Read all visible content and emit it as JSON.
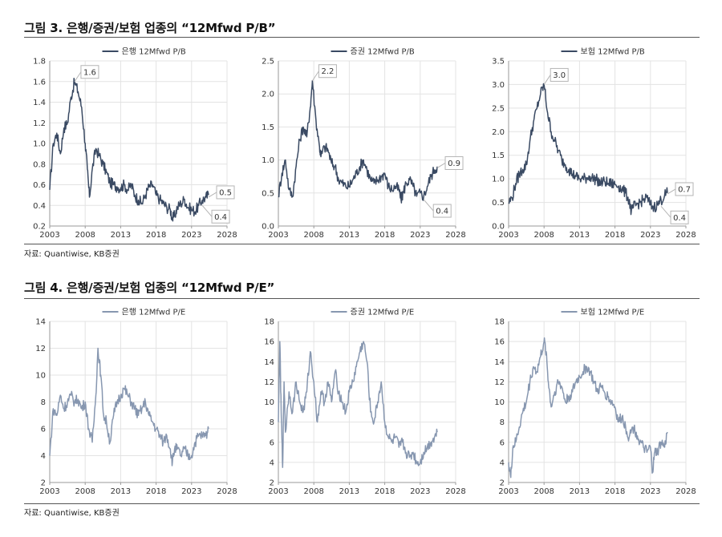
{
  "figures": [
    {
      "title": "그림 3. 은행/증권/보험 업종의 “12Mfwd P/B”",
      "source": "자료: Quantiwise, KB증권"
    },
    {
      "title": "그림 4. 은행/증권/보험 업종의 “12Mfwd P/E”",
      "source": "자료: Quantiwise, KB증권"
    }
  ],
  "colors": {
    "pb": "#3a4a63",
    "pe": "#8797b0",
    "grid": "#e3e3e3",
    "axis": "#9a9a9a",
    "callout_border": "#b5b5b5"
  },
  "chart_data": [
    {
      "type": "line",
      "series": [
        {
          "name": "은행 12Mfwd P/B",
          "x": [
            2003.0,
            2003.5,
            2004.0,
            2004.5,
            2005.0,
            2005.5,
            2006.0,
            2006.5,
            2007.0,
            2007.5,
            2008.0,
            2008.3,
            2008.6,
            2009.0,
            2009.5,
            2010.0,
            2010.5,
            2011.0,
            2011.5,
            2012.0,
            2012.5,
            2013.0,
            2013.5,
            2014.0,
            2014.5,
            2015.0,
            2015.5,
            2016.0,
            2016.5,
            2017.0,
            2017.5,
            2018.0,
            2018.5,
            2019.0,
            2019.5,
            2020.0,
            2020.3,
            2020.6,
            2021.0,
            2021.5,
            2022.0,
            2022.5,
            2023.0,
            2023.5,
            2024.0,
            2024.5,
            2025.0,
            2025.4
          ],
          "values": [
            0.55,
            1.0,
            1.1,
            0.9,
            1.15,
            1.2,
            1.45,
            1.6,
            1.5,
            1.35,
            1.0,
            0.75,
            0.48,
            0.75,
            0.95,
            0.88,
            0.8,
            0.72,
            0.62,
            0.6,
            0.58,
            0.57,
            0.6,
            0.55,
            0.6,
            0.5,
            0.45,
            0.42,
            0.5,
            0.58,
            0.6,
            0.5,
            0.46,
            0.42,
            0.38,
            0.36,
            0.27,
            0.3,
            0.38,
            0.42,
            0.46,
            0.38,
            0.36,
            0.34,
            0.4,
            0.45,
            0.48,
            0.5
          ]
        }
      ],
      "xlim": [
        2003,
        2028
      ],
      "ylim": [
        0.2,
        1.8
      ],
      "xticks": [
        "2003",
        "2008",
        "2013",
        "2018",
        "2023",
        "2028"
      ],
      "yticks": [
        "0.2",
        "0.4",
        "0.6",
        "0.8",
        "1.0",
        "1.2",
        "1.4",
        "1.6",
        "1.8"
      ],
      "legend": "top-center",
      "grid": true,
      "annotations": [
        {
          "text": "1.6",
          "x": 2006.5,
          "y": 1.6
        },
        {
          "text": "0.5",
          "x": 2025.4,
          "y": 0.48
        },
        {
          "text": "0.4",
          "x": 2024.5,
          "y": 0.4
        }
      ]
    },
    {
      "type": "line",
      "series": [
        {
          "name": "증권 12Mfwd P/B",
          "x": [
            2003.0,
            2003.5,
            2004.0,
            2004.5,
            2005.0,
            2005.5,
            2006.0,
            2006.5,
            2007.0,
            2007.5,
            2007.8,
            2008.3,
            2008.8,
            2009.0,
            2009.5,
            2010.0,
            2010.5,
            2011.0,
            2011.5,
            2012.0,
            2012.5,
            2013.0,
            2013.5,
            2014.0,
            2014.5,
            2015.0,
            2015.5,
            2016.0,
            2016.5,
            2017.0,
            2017.5,
            2018.0,
            2018.5,
            2019.0,
            2019.5,
            2020.0,
            2020.3,
            2020.6,
            2021.0,
            2021.5,
            2022.0,
            2022.5,
            2023.0,
            2023.5,
            2024.0,
            2024.5,
            2025.0,
            2025.4
          ],
          "values": [
            0.45,
            0.8,
            1.0,
            0.55,
            0.45,
            0.9,
            1.3,
            1.5,
            1.35,
            1.8,
            2.2,
            1.6,
            1.2,
            1.05,
            1.2,
            1.15,
            0.95,
            0.9,
            0.7,
            0.65,
            0.6,
            0.6,
            0.7,
            0.8,
            0.9,
            1.0,
            0.85,
            0.7,
            0.65,
            0.7,
            0.75,
            0.8,
            0.6,
            0.55,
            0.6,
            0.55,
            0.4,
            0.5,
            0.65,
            0.7,
            0.6,
            0.45,
            0.5,
            0.45,
            0.6,
            0.75,
            0.85,
            0.9
          ]
        }
      ],
      "xlim": [
        2003,
        2028
      ],
      "ylim": [
        0.0,
        2.5
      ],
      "xticks": [
        "2003",
        "2008",
        "2013",
        "2018",
        "2023",
        "2028"
      ],
      "yticks": [
        "0.0",
        "0.5",
        "1.0",
        "1.5",
        "2.0",
        "2.5"
      ],
      "legend": "top-center",
      "grid": true,
      "annotations": [
        {
          "text": "2.2",
          "x": 2007.8,
          "y": 2.2
        },
        {
          "text": "0.9",
          "x": 2025.4,
          "y": 0.88
        },
        {
          "text": "0.4",
          "x": 2023.5,
          "y": 0.4
        }
      ]
    },
    {
      "type": "line",
      "series": [
        {
          "name": "보험 12Mfwd P/B",
          "x": [
            2003.0,
            2003.5,
            2004.0,
            2004.5,
            2005.0,
            2005.5,
            2006.0,
            2006.5,
            2007.0,
            2007.5,
            2008.0,
            2008.5,
            2009.0,
            2009.5,
            2010.0,
            2010.5,
            2011.0,
            2011.5,
            2012.0,
            2012.5,
            2013.0,
            2013.5,
            2014.0,
            2014.5,
            2015.0,
            2015.5,
            2016.0,
            2016.5,
            2017.0,
            2017.5,
            2018.0,
            2018.5,
            2019.0,
            2019.5,
            2020.0,
            2020.3,
            2020.6,
            2021.0,
            2021.5,
            2022.0,
            2022.5,
            2023.0,
            2023.5,
            2024.0,
            2024.5,
            2025.0,
            2025.4
          ],
          "values": [
            0.5,
            0.6,
            0.9,
            1.1,
            1.2,
            1.3,
            1.8,
            2.2,
            2.5,
            2.8,
            3.0,
            2.4,
            2.0,
            1.8,
            1.6,
            1.4,
            1.3,
            1.2,
            1.1,
            1.05,
            1.0,
            1.0,
            1.02,
            1.05,
            1.0,
            0.98,
            0.9,
            0.95,
            0.9,
            0.9,
            0.88,
            0.85,
            0.78,
            0.7,
            0.55,
            0.3,
            0.4,
            0.45,
            0.5,
            0.55,
            0.6,
            0.45,
            0.4,
            0.45,
            0.55,
            0.65,
            0.7
          ]
        }
      ],
      "xlim": [
        2003,
        2028
      ],
      "ylim": [
        0.0,
        3.5
      ],
      "xticks": [
        "2003",
        "2008",
        "2013",
        "2018",
        "2023",
        "2028"
      ],
      "yticks": [
        "0.0",
        "0.5",
        "1.0",
        "1.5",
        "2.0",
        "2.5",
        "3.0",
        "3.5"
      ],
      "legend": "top-center",
      "grid": true,
      "annotations": [
        {
          "text": "3.0",
          "x": 2008.0,
          "y": 3.0
        },
        {
          "text": "0.7",
          "x": 2025.4,
          "y": 0.68
        },
        {
          "text": "0.4",
          "x": 2024.5,
          "y": 0.42
        }
      ]
    },
    {
      "type": "line",
      "series": [
        {
          "name": "은행 12Mfwd P/E",
          "x": [
            2003.0,
            2003.5,
            2004.0,
            2004.5,
            2005.0,
            2005.5,
            2006.0,
            2006.5,
            2007.0,
            2007.5,
            2008.0,
            2008.5,
            2009.0,
            2009.5,
            2009.8,
            2010.2,
            2010.6,
            2011.0,
            2011.5,
            2012.0,
            2012.5,
            2013.0,
            2013.5,
            2014.0,
            2014.5,
            2015.0,
            2015.5,
            2016.0,
            2016.5,
            2017.0,
            2017.5,
            2018.0,
            2018.5,
            2019.0,
            2019.5,
            2020.0,
            2020.3,
            2020.6,
            2021.0,
            2021.5,
            2022.0,
            2022.5,
            2023.0,
            2023.5,
            2024.0,
            2024.5,
            2025.0,
            2025.4
          ],
          "values": [
            4.0,
            7.5,
            7.0,
            8.5,
            7.5,
            8.0,
            8.5,
            8.0,
            8.2,
            7.5,
            8.0,
            6.0,
            5.0,
            8.5,
            12.0,
            10.0,
            7.0,
            6.5,
            5.0,
            7.0,
            8.0,
            8.5,
            9.0,
            8.5,
            8.0,
            7.5,
            7.0,
            7.5,
            8.0,
            7.0,
            6.5,
            6.0,
            5.5,
            5.0,
            5.5,
            4.5,
            3.5,
            4.5,
            4.5,
            4.0,
            4.5,
            4.0,
            4.0,
            5.0,
            5.5,
            5.5,
            5.5,
            6.0
          ]
        }
      ],
      "xlim": [
        2003,
        2028
      ],
      "ylim": [
        2,
        14
      ],
      "xticks": [
        "2003",
        "2008",
        "2013",
        "2018",
        "2023",
        "2028"
      ],
      "yticks": [
        "2",
        "4",
        "6",
        "8",
        "10",
        "12",
        "14"
      ],
      "legend": "top-center",
      "grid": true
    },
    {
      "type": "line",
      "series": [
        {
          "name": "증권 12Mfwd P/E",
          "x": [
            2003.0,
            2003.2,
            2003.4,
            2003.6,
            2003.8,
            2004.0,
            2004.5,
            2005.0,
            2005.5,
            2006.0,
            2006.5,
            2007.0,
            2007.5,
            2008.0,
            2008.5,
            2009.0,
            2009.5,
            2010.0,
            2010.5,
            2011.0,
            2011.5,
            2012.0,
            2012.5,
            2013.0,
            2013.5,
            2014.0,
            2014.5,
            2015.0,
            2015.5,
            2016.0,
            2016.5,
            2017.0,
            2017.5,
            2018.0,
            2018.5,
            2019.0,
            2019.5,
            2020.0,
            2020.5,
            2021.0,
            2021.5,
            2022.0,
            2022.5,
            2023.0,
            2023.5,
            2024.0,
            2024.5,
            2025.0,
            2025.4
          ],
          "values": [
            8.0,
            16.0,
            9.0,
            3.5,
            12.0,
            7.0,
            11.0,
            9.0,
            12.0,
            10.0,
            9.0,
            11.0,
            15.0,
            12.0,
            8.0,
            11.0,
            10.0,
            12.0,
            10.0,
            13.0,
            11.0,
            10.0,
            9.0,
            11.0,
            12.0,
            13.5,
            15.0,
            16.0,
            14.0,
            9.0,
            8.0,
            10.0,
            12.0,
            8.0,
            6.5,
            6.0,
            6.5,
            5.5,
            6.0,
            5.0,
            4.5,
            5.0,
            4.0,
            4.0,
            5.0,
            5.5,
            6.0,
            6.5,
            7.0
          ]
        }
      ],
      "xlim": [
        2003,
        2028
      ],
      "ylim": [
        2,
        18
      ],
      "xticks": [
        "2003",
        "2008",
        "2013",
        "2018",
        "2023",
        "2028"
      ],
      "yticks": [
        "2",
        "4",
        "6",
        "8",
        "10",
        "12",
        "14",
        "16",
        "18"
      ],
      "legend": "top-center",
      "grid": true
    },
    {
      "type": "line",
      "series": [
        {
          "name": "보험 12Mfwd P/E",
          "x": [
            2003.0,
            2003.3,
            2003.6,
            2004.0,
            2004.5,
            2005.0,
            2005.5,
            2006.0,
            2006.5,
            2007.0,
            2007.5,
            2008.0,
            2008.3,
            2008.6,
            2009.0,
            2009.5,
            2010.0,
            2010.5,
            2011.0,
            2011.5,
            2012.0,
            2012.5,
            2013.0,
            2013.5,
            2014.0,
            2014.5,
            2015.0,
            2015.5,
            2016.0,
            2016.5,
            2017.0,
            2017.5,
            2018.0,
            2018.5,
            2019.0,
            2019.5,
            2020.0,
            2020.5,
            2021.0,
            2021.5,
            2022.0,
            2022.5,
            2023.0,
            2023.3,
            2023.6,
            2024.0,
            2024.5,
            2025.0,
            2025.4
          ],
          "values": [
            4.0,
            2.5,
            5.5,
            6.0,
            7.5,
            9.0,
            10.0,
            12.0,
            13.5,
            13.0,
            14.5,
            16.0,
            15.0,
            12.0,
            9.5,
            11.0,
            12.0,
            11.5,
            10.0,
            10.5,
            11.0,
            12.0,
            12.5,
            13.0,
            13.5,
            13.0,
            12.0,
            11.0,
            11.5,
            11.0,
            10.5,
            10.0,
            9.5,
            8.0,
            8.5,
            7.5,
            6.5,
            7.5,
            7.0,
            6.0,
            5.5,
            5.0,
            5.5,
            3.0,
            5.0,
            5.0,
            6.0,
            5.5,
            7.0
          ]
        }
      ],
      "xlim": [
        2003,
        2028
      ],
      "ylim": [
        2,
        18
      ],
      "xticks": [
        "2003",
        "2008",
        "2013",
        "2018",
        "2023",
        "2028"
      ],
      "yticks": [
        "2",
        "4",
        "6",
        "8",
        "10",
        "12",
        "14",
        "16",
        "18"
      ],
      "legend": "top-center",
      "grid": true
    }
  ]
}
